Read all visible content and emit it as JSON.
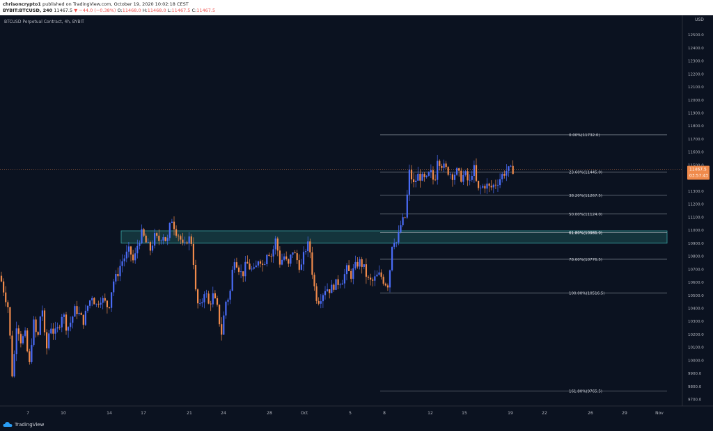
{
  "header": {
    "user": "chrisoncrypto1",
    "published": " published on TradingView.com, October 19, 2020 10:02:18 CEST",
    "symbol": "BYBIT:BTCUSD, 240",
    "last": "11467.5",
    "change": "▼ −44.0 (−0.38%)",
    "o_label": "O:",
    "o": "11468.0",
    "h_label": "H:",
    "h": "11468.0",
    "l_label": "L:",
    "l": "11467.5",
    "c_label": "C:",
    "c": "11467.5"
  },
  "footer": {
    "brand": "TradingView"
  },
  "colors": {
    "background": "#0b1220",
    "up": "#4a6cf7",
    "down": "#f08a4b",
    "zone": "#1f5f5f",
    "zone_border": "#3aa6a6",
    "fib": "#9aa3ad",
    "price_tag": "#f08a4b"
  },
  "chart_data": {
    "type": "candlestick",
    "title": "BTCUSD Perpetual Contract, 4h, BYBIT",
    "currency": "USD",
    "ylim": [
      9650,
      12650
    ],
    "y_ticks": [
      9700,
      9800,
      9900,
      10000,
      10100,
      10200,
      10300,
      10400,
      10500,
      10600,
      10700,
      10800,
      10900,
      11000,
      11100,
      11200,
      11300,
      11400,
      11500,
      11600,
      11700,
      11800,
      11900,
      12000,
      12100,
      12200,
      12300,
      12400,
      12500
    ],
    "x_ticks": [
      "7",
      "10",
      "14",
      "17",
      "21",
      "24",
      "28",
      "Oct",
      "5",
      "8",
      "12",
      "15",
      "19",
      "22",
      "26",
      "29",
      "Nov"
    ],
    "last_price": "11467.5",
    "countdown": "03:57:43",
    "support_zone": [
      10900,
      10995
    ],
    "fib_levels": [
      {
        "label": "0.00%(11732.0)",
        "price": 11732.0
      },
      {
        "label": "23.60%(11445.0)",
        "price": 11445.0
      },
      {
        "label": "38.20%(11267.5)",
        "price": 11267.5
      },
      {
        "label": "50.00%(11124.0)",
        "price": 11124.0
      },
      {
        "label": "61.80%(10980.5)",
        "price": 10980.5
      },
      {
        "label": "61.80%(10981.0)",
        "price": 10981.0
      },
      {
        "label": "78.60%(10776.5)",
        "price": 10776.5
      },
      {
        "label": "100.00%(10516.5)",
        "price": 10516.5
      },
      {
        "label": "161.80%(9765.5)",
        "price": 9765.5
      }
    ],
    "price_path": [
      [
        0,
        10650
      ],
      [
        6,
        10520
      ],
      [
        12,
        10400
      ],
      [
        18,
        9850
      ],
      [
        24,
        10300
      ],
      [
        30,
        10150
      ],
      [
        36,
        10200
      ],
      [
        42,
        9950
      ],
      [
        48,
        10300
      ],
      [
        54,
        10150
      ],
      [
        60,
        10450
      ],
      [
        66,
        10050
      ],
      [
        72,
        10280
      ],
      [
        78,
        10200
      ],
      [
        84,
        10250
      ],
      [
        90,
        10380
      ],
      [
        96,
        10240
      ],
      [
        102,
        10300
      ],
      [
        108,
        10400
      ],
      [
        114,
        10350
      ],
      [
        120,
        10300
      ],
      [
        126,
        10420
      ],
      [
        132,
        10500
      ],
      [
        138,
        10420
      ],
      [
        144,
        10480
      ],
      [
        150,
        10450
      ],
      [
        156,
        10400
      ],
      [
        162,
        10600
      ],
      [
        168,
        10650
      ],
      [
        174,
        10750
      ],
      [
        180,
        10800
      ],
      [
        186,
        10850
      ],
      [
        192,
        10750
      ],
      [
        198,
        10900
      ],
      [
        204,
        10980
      ],
      [
        210,
        10900
      ],
      [
        216,
        10850
      ],
      [
        222,
        10950
      ],
      [
        228,
        10920
      ],
      [
        234,
        10970
      ],
      [
        240,
        10900
      ],
      [
        246,
        11100
      ],
      [
        252,
        11000
      ],
      [
        258,
        10950
      ],
      [
        264,
        10850
      ],
      [
        270,
        10950
      ],
      [
        276,
        10900
      ],
      [
        282,
        10450
      ],
      [
        288,
        10400
      ],
      [
        294,
        10550
      ],
      [
        300,
        10420
      ],
      [
        306,
        10500
      ],
      [
        312,
        10400
      ],
      [
        318,
        10200
      ],
      [
        324,
        10450
      ],
      [
        330,
        10500
      ],
      [
        336,
        10800
      ],
      [
        342,
        10720
      ],
      [
        348,
        10650
      ],
      [
        354,
        10750
      ],
      [
        360,
        10700
      ],
      [
        366,
        10680
      ],
      [
        372,
        10800
      ],
      [
        378,
        10720
      ],
      [
        384,
        10850
      ],
      [
        390,
        10800
      ],
      [
        396,
        10930
      ],
      [
        402,
        10750
      ],
      [
        408,
        10800
      ],
      [
        414,
        10720
      ],
      [
        420,
        10850
      ],
      [
        426,
        10780
      ],
      [
        432,
        10700
      ],
      [
        438,
        10850
      ],
      [
        444,
        10900
      ],
      [
        450,
        10600
      ],
      [
        456,
        10450
      ],
      [
        462,
        10500
      ],
      [
        468,
        10560
      ],
      [
        474,
        10540
      ],
      [
        480,
        10580
      ],
      [
        486,
        10600
      ],
      [
        492,
        10620
      ],
      [
        498,
        10700
      ],
      [
        504,
        10650
      ],
      [
        510,
        10720
      ],
      [
        516,
        10760
      ],
      [
        522,
        10720
      ],
      [
        528,
        10620
      ],
      [
        534,
        10600
      ],
      [
        540,
        10640
      ],
      [
        546,
        10660
      ],
      [
        552,
        10600
      ],
      [
        558,
        10580
      ],
      [
        564,
        10950
      ],
      [
        570,
        10900
      ],
      [
        576,
        11050
      ],
      [
        582,
        11100
      ],
      [
        588,
        11450
      ],
      [
        594,
        11350
      ],
      [
        600,
        11420
      ],
      [
        606,
        11400
      ],
      [
        612,
        11380
      ],
      [
        618,
        11450
      ],
      [
        624,
        11360
      ],
      [
        628,
        11560
      ],
      [
        632,
        11520
      ],
      [
        638,
        11480
      ],
      [
        644,
        11450
      ],
      [
        650,
        11420
      ],
      [
        656,
        11450
      ],
      [
        662,
        11400
      ],
      [
        668,
        11430
      ],
      [
        674,
        11350
      ],
      [
        680,
        11500
      ],
      [
        686,
        11300
      ],
      [
        692,
        11330
      ],
      [
        698,
        11350
      ],
      [
        704,
        11320
      ],
      [
        710,
        11350
      ],
      [
        716,
        11380
      ],
      [
        722,
        11430
      ],
      [
        728,
        11460
      ],
      [
        734,
        11460
      ],
      [
        738,
        11467.5
      ]
    ]
  }
}
